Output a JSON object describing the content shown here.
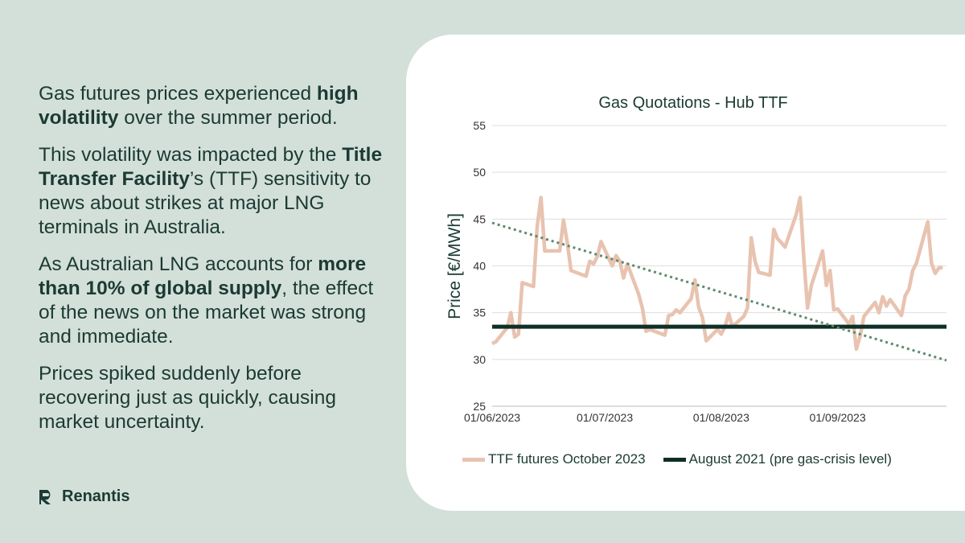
{
  "text": {
    "p1_a": "Gas futures prices experienced ",
    "p1_b": "high volatility",
    "p1_c": " over the summer period.",
    "p2_a": "This volatility was impacted by the ",
    "p2_b": "Title Transfer Facility",
    "p2_c": "’s (TTF) sensitivity to news about strikes at major LNG terminals in Australia.",
    "p3_a": "As Australian LNG accounts for ",
    "p3_b": "more than 10% of global supply",
    "p3_c": ", the effect of the news on the market was strong and immediate.",
    "p4": "Prices spiked suddenly before recovering just as quickly, causing market uncertainty."
  },
  "brand": {
    "name": "Renantis"
  },
  "colors": {
    "ttf": "#e8c3b0",
    "baseline": "#0e2e26",
    "trend": "#5f8a6c",
    "grid": "#dedede"
  },
  "chart_data": {
    "type": "line",
    "title": "Gas Quotations - Hub TTF",
    "xlabel": "",
    "ylabel": "Price [€/MWh]",
    "ylim": [
      25,
      55
    ],
    "yticks": [
      25,
      30,
      35,
      40,
      45,
      50,
      55
    ],
    "xlim": [
      "01/06/2023",
      "30/09/2023"
    ],
    "xticks": [
      "01/06/2023",
      "01/07/2023",
      "01/08/2023",
      "01/09/2023"
    ],
    "grid": true,
    "legend": "bottom",
    "series": [
      {
        "name": "TTF futures October 2023",
        "style": "line",
        "points": [
          [
            "01/06/2023",
            31.7
          ],
          [
            "02/06/2023",
            31.9
          ],
          [
            "05/06/2023",
            33.4
          ],
          [
            "06/06/2023",
            35.0
          ],
          [
            "07/06/2023",
            32.4
          ],
          [
            "08/06/2023",
            32.7
          ],
          [
            "09/06/2023",
            38.2
          ],
          [
            "12/06/2023",
            37.8
          ],
          [
            "13/06/2023",
            44.2
          ],
          [
            "14/06/2023",
            47.3
          ],
          [
            "15/06/2023",
            41.6
          ],
          [
            "16/06/2023",
            41.6
          ],
          [
            "19/06/2023",
            41.6
          ],
          [
            "20/06/2023",
            44.9
          ],
          [
            "21/06/2023",
            42.5
          ],
          [
            "22/06/2023",
            39.5
          ],
          [
            "26/06/2023",
            38.9
          ],
          [
            "27/06/2023",
            40.5
          ],
          [
            "28/06/2023",
            40.2
          ],
          [
            "29/06/2023",
            41.0
          ],
          [
            "30/06/2023",
            42.6
          ],
          [
            "03/07/2023",
            40.0
          ],
          [
            "04/07/2023",
            41.1
          ],
          [
            "05/07/2023",
            40.5
          ],
          [
            "06/07/2023",
            38.7
          ],
          [
            "07/07/2023",
            40.2
          ],
          [
            "10/07/2023",
            37.0
          ],
          [
            "11/07/2023",
            35.5
          ],
          [
            "12/07/2023",
            33.0
          ],
          [
            "13/07/2023",
            33.2
          ],
          [
            "17/07/2023",
            32.6
          ],
          [
            "18/07/2023",
            34.7
          ],
          [
            "19/07/2023",
            34.8
          ],
          [
            "20/07/2023",
            35.3
          ],
          [
            "21/07/2023",
            35.0
          ],
          [
            "24/07/2023",
            36.5
          ],
          [
            "25/07/2023",
            38.5
          ],
          [
            "26/07/2023",
            35.6
          ],
          [
            "27/07/2023",
            34.5
          ],
          [
            "28/07/2023",
            32.0
          ],
          [
            "31/07/2023",
            33.2
          ],
          [
            "01/08/2023",
            32.7
          ],
          [
            "02/08/2023",
            33.5
          ],
          [
            "03/08/2023",
            34.9
          ],
          [
            "04/08/2023",
            33.5
          ],
          [
            "07/08/2023",
            34.6
          ],
          [
            "08/08/2023",
            35.5
          ],
          [
            "09/08/2023",
            43.0
          ],
          [
            "10/08/2023",
            40.5
          ],
          [
            "11/08/2023",
            39.3
          ],
          [
            "14/08/2023",
            39.0
          ],
          [
            "15/08/2023",
            43.9
          ],
          [
            "16/08/2023",
            42.9
          ],
          [
            "17/08/2023",
            42.5
          ],
          [
            "18/08/2023",
            42.0
          ],
          [
            "21/08/2023",
            45.5
          ],
          [
            "22/08/2023",
            47.3
          ],
          [
            "23/08/2023",
            40.8
          ],
          [
            "24/08/2023",
            35.5
          ],
          [
            "25/08/2023",
            37.9
          ],
          [
            "28/08/2023",
            41.6
          ],
          [
            "29/08/2023",
            37.9
          ],
          [
            "30/08/2023",
            39.5
          ],
          [
            "31/08/2023",
            35.3
          ],
          [
            "01/09/2023",
            35.4
          ],
          [
            "04/09/2023",
            33.8
          ],
          [
            "05/09/2023",
            34.6
          ],
          [
            "06/09/2023",
            31.1
          ],
          [
            "07/09/2023",
            32.5
          ],
          [
            "08/09/2023",
            34.6
          ],
          [
            "11/09/2023",
            36.1
          ],
          [
            "12/09/2023",
            35.0
          ],
          [
            "13/09/2023",
            36.7
          ],
          [
            "14/09/2023",
            35.7
          ],
          [
            "15/09/2023",
            36.4
          ],
          [
            "18/09/2023",
            34.7
          ],
          [
            "19/09/2023",
            36.8
          ],
          [
            "20/09/2023",
            37.5
          ],
          [
            "21/09/2023",
            39.5
          ],
          [
            "22/09/2023",
            40.3
          ],
          [
            "25/09/2023",
            44.7
          ],
          [
            "26/09/2023",
            40.3
          ],
          [
            "27/09/2023",
            39.2
          ],
          [
            "28/09/2023",
            39.8
          ],
          [
            "29/09/2023",
            39.8
          ]
        ]
      },
      {
        "name": "August 2021 (pre gas-crisis level)",
        "style": "line",
        "points": [
          [
            "01/06/2023",
            33.5
          ],
          [
            "30/09/2023",
            33.5
          ]
        ]
      },
      {
        "style": "dotted",
        "points": [
          [
            "01/06/2023",
            44.6
          ],
          [
            "30/09/2023",
            29.9
          ]
        ]
      }
    ]
  }
}
